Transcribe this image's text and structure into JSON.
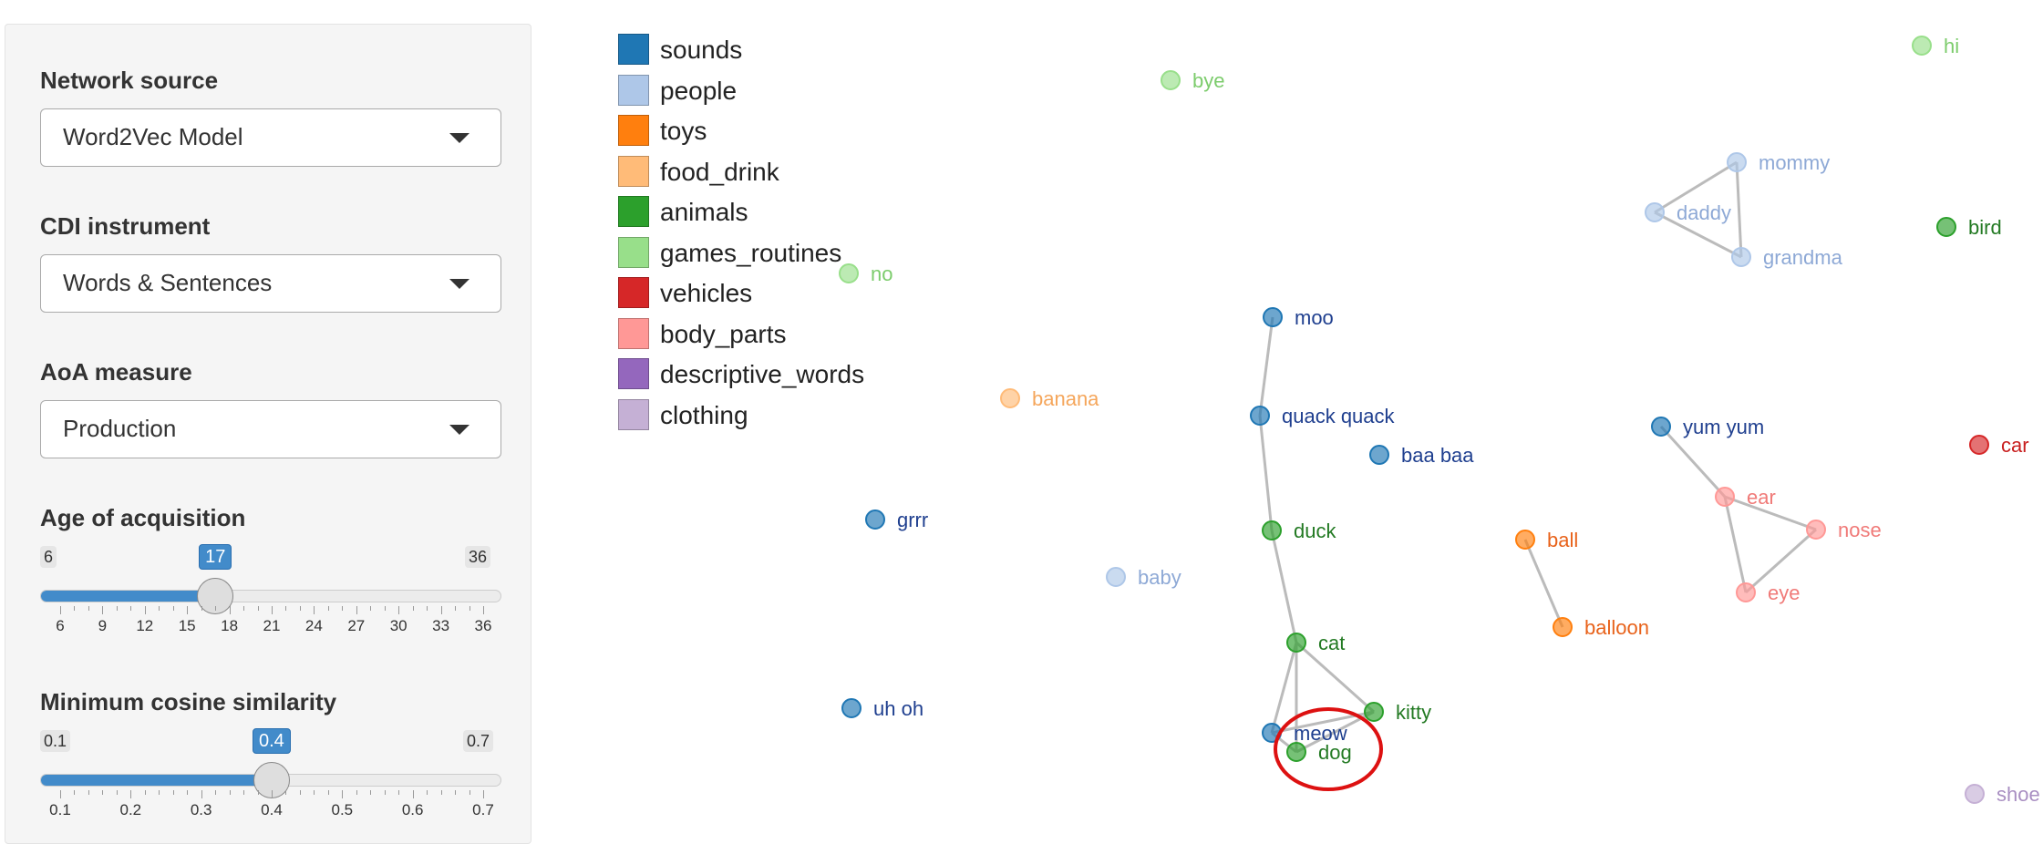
{
  "sidebar": {
    "network_source": {
      "label": "Network source",
      "value": "Word2Vec Model"
    },
    "cdi_instrument": {
      "label": "CDI instrument",
      "value": "Words & Sentences"
    },
    "aoa_measure": {
      "label": "AoA measure",
      "value": "Production"
    },
    "aoa_slider": {
      "label": "Age of acquisition",
      "min": "6",
      "max": "36",
      "value": "17",
      "min_num": 6,
      "max_num": 36,
      "value_num": 17,
      "ticks": [
        "6",
        "9",
        "12",
        "15",
        "18",
        "21",
        "24",
        "27",
        "30",
        "33",
        "36"
      ]
    },
    "cos_slider": {
      "label": "Minimum cosine similarity",
      "min": "0.1",
      "max": "0.7",
      "value": "0.4",
      "min_num": 0.1,
      "max_num": 0.7,
      "value_num": 0.4,
      "ticks": [
        "0.1",
        "0.2",
        "0.3",
        "0.4",
        "0.5",
        "0.6",
        "0.7"
      ]
    }
  },
  "legend": [
    {
      "name": "sounds",
      "color": "#1f77b4"
    },
    {
      "name": "people",
      "color": "#aec7e8"
    },
    {
      "name": "toys",
      "color": "#ff7f0e"
    },
    {
      "name": "food_drink",
      "color": "#ffbb78"
    },
    {
      "name": "animals",
      "color": "#2ca02c"
    },
    {
      "name": "games_routines",
      "color": "#98df8a"
    },
    {
      "name": "vehicles",
      "color": "#d62728"
    },
    {
      "name": "body_parts",
      "color": "#ff9896"
    },
    {
      "name": "descriptive_words",
      "color": "#9467bd"
    },
    {
      "name": "clothing",
      "color": "#c5b0d5"
    }
  ],
  "nodes": [
    {
      "id": "hi",
      "cat": "games_routines"
    },
    {
      "id": "bye",
      "cat": "games_routines"
    },
    {
      "id": "mommy",
      "cat": "people"
    },
    {
      "id": "daddy",
      "cat": "people"
    },
    {
      "id": "grandma",
      "cat": "people"
    },
    {
      "id": "bird",
      "cat": "animals"
    },
    {
      "id": "no",
      "cat": "games_routines"
    },
    {
      "id": "moo",
      "cat": "sounds"
    },
    {
      "id": "banana",
      "cat": "food_drink"
    },
    {
      "id": "quack quack",
      "cat": "sounds"
    },
    {
      "id": "baa baa",
      "cat": "sounds"
    },
    {
      "id": "yum yum",
      "cat": "sounds"
    },
    {
      "id": "car",
      "cat": "vehicles"
    },
    {
      "id": "ear",
      "cat": "body_parts"
    },
    {
      "id": "grrr",
      "cat": "sounds"
    },
    {
      "id": "duck",
      "cat": "animals"
    },
    {
      "id": "ball",
      "cat": "toys"
    },
    {
      "id": "nose",
      "cat": "body_parts"
    },
    {
      "id": "baby",
      "cat": "people"
    },
    {
      "id": "eye",
      "cat": "body_parts"
    },
    {
      "id": "balloon",
      "cat": "toys"
    },
    {
      "id": "cat",
      "cat": "animals"
    },
    {
      "id": "uh oh",
      "cat": "sounds"
    },
    {
      "id": "kitty",
      "cat": "animals"
    },
    {
      "id": "meow",
      "cat": "sounds"
    },
    {
      "id": "dog",
      "cat": "animals"
    },
    {
      "id": "shoe",
      "cat": "clothing"
    }
  ],
  "edges": [
    [
      "mommy",
      "daddy"
    ],
    [
      "mommy",
      "grandma"
    ],
    [
      "daddy",
      "grandma"
    ],
    [
      "moo",
      "quack quack"
    ],
    [
      "quack quack",
      "duck"
    ],
    [
      "duck",
      "cat"
    ],
    [
      "cat",
      "kitty"
    ],
    [
      "cat",
      "meow"
    ],
    [
      "cat",
      "dog"
    ],
    [
      "kitty",
      "meow"
    ],
    [
      "kitty",
      "dog"
    ],
    [
      "meow",
      "dog"
    ],
    [
      "yum yum",
      "ear"
    ],
    [
      "ear",
      "nose"
    ],
    [
      "ear",
      "eye"
    ],
    [
      "nose",
      "eye"
    ],
    [
      "ball",
      "balloon"
    ]
  ],
  "highlight": {
    "node": "dog",
    "color": "#dd1111"
  },
  "edge_color": "#bbbbbb"
}
